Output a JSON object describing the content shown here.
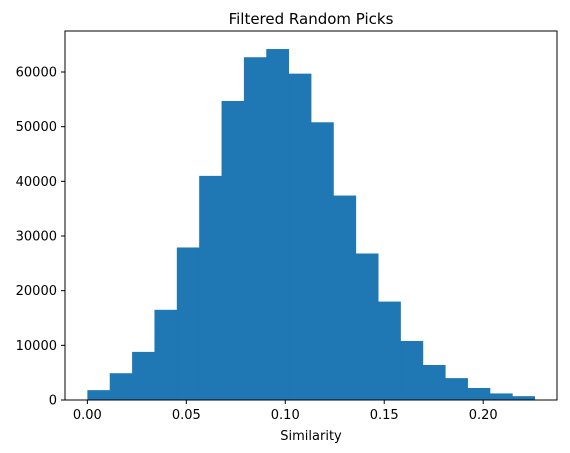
{
  "chart_data": {
    "type": "bar",
    "title": "Filtered Random Picks",
    "xlabel": "Similarity",
    "ylabel": "",
    "xlim": [
      -0.0113,
      0.2373
    ],
    "ylim": [
      0,
      67500
    ],
    "xticks": [
      0.0,
      0.05,
      0.1,
      0.15,
      0.2
    ],
    "xtick_labels": [
      "0.00",
      "0.05",
      "0.10",
      "0.15",
      "0.20"
    ],
    "yticks": [
      0,
      10000,
      20000,
      30000,
      40000,
      50000,
      60000
    ],
    "ytick_labels": [
      "0",
      "10000",
      "20000",
      "30000",
      "40000",
      "50000",
      "60000"
    ],
    "bin_edges": [
      0.0,
      0.0113,
      0.0226,
      0.0339,
      0.0452,
      0.0565,
      0.0678,
      0.0791,
      0.0904,
      0.1017,
      0.113,
      0.1243,
      0.1356,
      0.1469,
      0.1582,
      0.1695,
      0.1808,
      0.1921,
      0.2034,
      0.2147,
      0.226
    ],
    "values": [
      1800,
      4900,
      8800,
      16500,
      27900,
      41000,
      54700,
      62700,
      64200,
      59700,
      50800,
      37400,
      26800,
      18000,
      10800,
      6400,
      4000,
      2200,
      1200,
      700
    ],
    "bar_color": "#1f77b4",
    "grid": false,
    "legend": false
  }
}
